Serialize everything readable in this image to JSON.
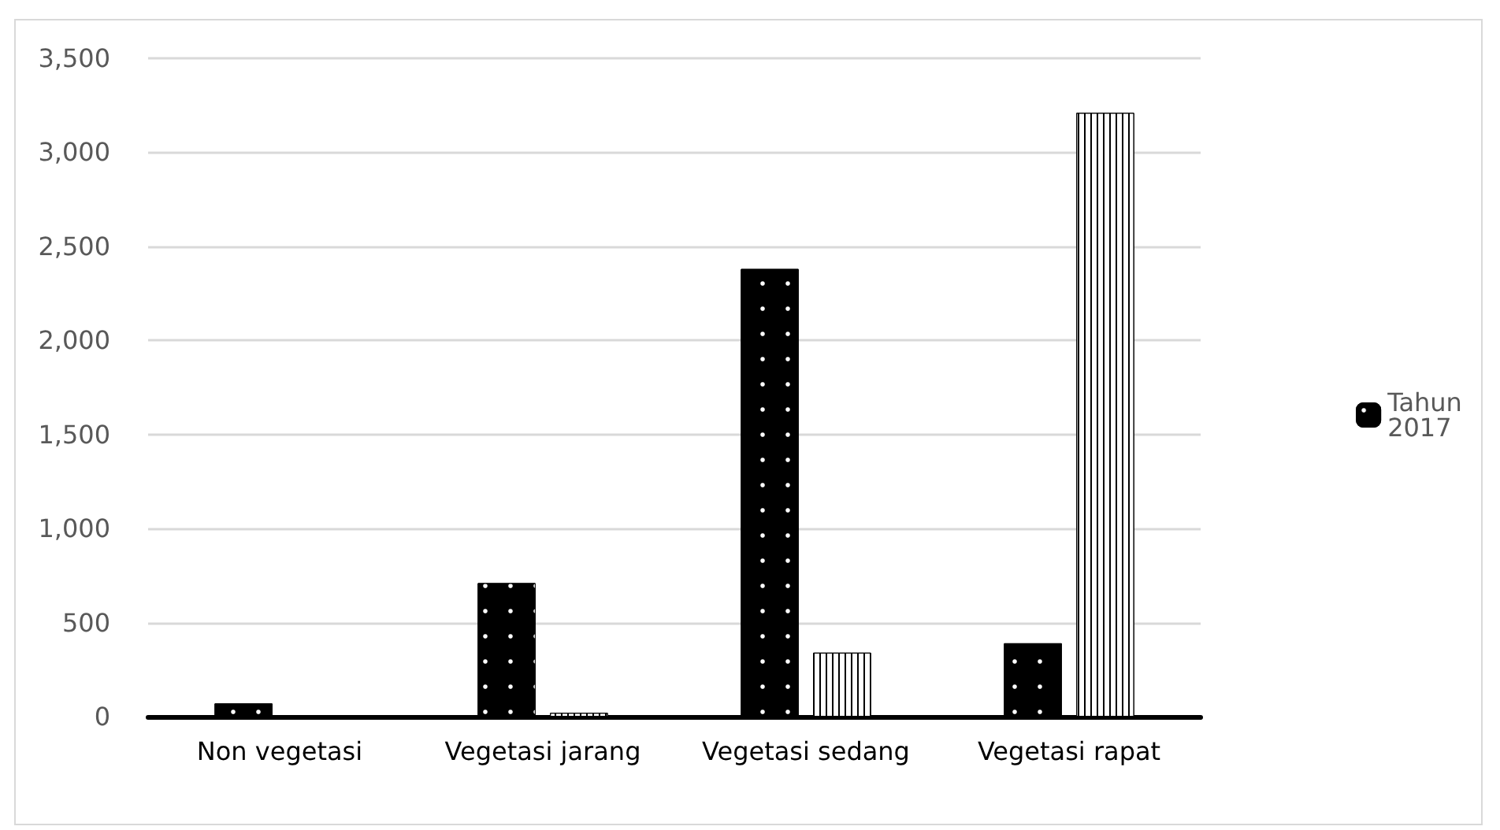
{
  "chart_data": {
    "type": "bar",
    "categories": [
      "Non vegetasi",
      "Vegetasi jarang",
      "Vegetasi sedang",
      "Vegetasi rapat"
    ],
    "series": [
      {
        "name": "Tahun 2017",
        "color": "#000000",
        "values": [
          70,
          710,
          2380,
          390
        ]
      },
      {
        "color": "#ffffff",
        "values": [
          null,
          20,
          340,
          3210
        ]
      }
    ],
    "ylim": [
      0,
      3500
    ],
    "yticks": [
      {
        "value": 0,
        "label": "0"
      },
      {
        "value": 500,
        "label": "500"
      },
      {
        "value": 1000,
        "label": "1,000"
      },
      {
        "value": 1500,
        "label": "1,500"
      },
      {
        "value": 2000,
        "label": "2,000"
      },
      {
        "value": 2500,
        "label": "2,500"
      },
      {
        "value": 3000,
        "label": "3,000"
      },
      {
        "value": 3500,
        "label": "3,500"
      }
    ],
    "grid": "y",
    "legend": "right"
  }
}
